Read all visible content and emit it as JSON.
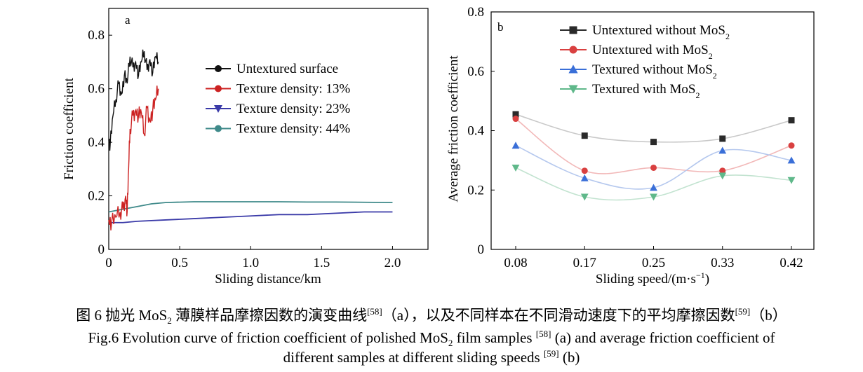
{
  "chart_data": [
    {
      "type": "line",
      "panel_label": "a",
      "xlabel": "Sliding distance/km",
      "ylabel": "Friction coefficient",
      "xlim": [
        0,
        2.25
      ],
      "ylim": [
        0,
        0.9
      ],
      "x_ticks": [
        "0",
        "0.5",
        "1.0",
        "1.5",
        "2.0"
      ],
      "y_ticks": [
        "0",
        "0.2",
        "0.4",
        "0.6",
        "0.8"
      ],
      "x_tick_values": [
        0,
        0.5,
        1.0,
        1.5,
        2.0
      ],
      "y_tick_values": [
        0,
        0.2,
        0.4,
        0.6,
        0.8
      ],
      "series": [
        {
          "name": "Untextured surface",
          "color": "#111111",
          "marker": "circle",
          "x": [
            0,
            0.01,
            0.03,
            0.05,
            0.07,
            0.09,
            0.11,
            0.13,
            0.15,
            0.17,
            0.19,
            0.21,
            0.23,
            0.25,
            0.27,
            0.29,
            0.31,
            0.33,
            0.35
          ],
          "y": [
            0.41,
            0.39,
            0.5,
            0.56,
            0.62,
            0.58,
            0.65,
            0.62,
            0.72,
            0.68,
            0.7,
            0.65,
            0.7,
            0.74,
            0.67,
            0.71,
            0.66,
            0.72,
            0.7
          ]
        },
        {
          "name": "Texture density: 13%",
          "color": "#cc2222",
          "marker": "circle",
          "x": [
            0,
            0.02,
            0.05,
            0.08,
            0.1,
            0.12,
            0.13,
            0.14,
            0.15,
            0.17,
            0.19,
            0.21,
            0.23,
            0.25,
            0.27,
            0.29,
            0.31,
            0.33,
            0.35
          ],
          "y": [
            0.11,
            0.1,
            0.12,
            0.14,
            0.15,
            0.2,
            0.14,
            0.3,
            0.45,
            0.5,
            0.52,
            0.5,
            0.51,
            0.43,
            0.53,
            0.48,
            0.52,
            0.56,
            0.6
          ]
        },
        {
          "name": "Texture density: 23%",
          "color": "#3a3aa8",
          "marker": "triangle-down",
          "x": [
            0,
            0.1,
            0.2,
            0.4,
            0.6,
            0.8,
            1.0,
            1.2,
            1.4,
            1.6,
            1.8,
            2.0
          ],
          "y": [
            0.1,
            0.1,
            0.105,
            0.11,
            0.115,
            0.12,
            0.125,
            0.13,
            0.13,
            0.135,
            0.14,
            0.14
          ]
        },
        {
          "name": "Texture density: 44%",
          "color": "#3f8a8a",
          "marker": "circle",
          "x": [
            0,
            0.1,
            0.2,
            0.3,
            0.4,
            0.6,
            0.8,
            1.0,
            1.2,
            1.4,
            1.6,
            1.8,
            2.0
          ],
          "y": [
            0.14,
            0.15,
            0.16,
            0.17,
            0.175,
            0.178,
            0.178,
            0.178,
            0.178,
            0.177,
            0.177,
            0.176,
            0.175
          ]
        }
      ]
    },
    {
      "type": "line",
      "panel_label": "b",
      "xlabel": "Sliding speed/(m·s",
      "xlabel_sup": "−1",
      "xlabel_tail": ")",
      "ylabel": "Average friction coefficient",
      "categories": [
        "0.08",
        "0.17",
        "0.25",
        "0.33",
        "0.42"
      ],
      "ylim": [
        0,
        0.8
      ],
      "y_ticks": [
        "0",
        "0.2",
        "0.4",
        "0.6",
        "0.8"
      ],
      "y_tick_values": [
        0,
        0.2,
        0.4,
        0.6,
        0.8
      ],
      "series": [
        {
          "name": "Untextured without MoS",
          "name_sub": "2",
          "color": "#2a2a2a",
          "line_color": "#c9c9c9",
          "marker": "square",
          "values": [
            0.455,
            0.383,
            0.362,
            0.373,
            0.435
          ]
        },
        {
          "name": "Untextured with MoS",
          "name_sub": "2",
          "color": "#d94040",
          "line_color": "#f2b8b8",
          "marker": "circle",
          "values": [
            0.44,
            0.265,
            0.275,
            0.265,
            0.35
          ]
        },
        {
          "name": "Textured without MoS",
          "name_sub": "2",
          "color": "#3a6fd8",
          "line_color": "#b5c8ee",
          "marker": "triangle-up",
          "values": [
            0.35,
            0.24,
            0.208,
            0.333,
            0.3
          ]
        },
        {
          "name": "Textured with MoS",
          "name_sub": "2",
          "color": "#5fb88a",
          "line_color": "#c2e3d0",
          "marker": "triangle-down",
          "values": [
            0.275,
            0.177,
            0.177,
            0.248,
            0.233
          ]
        }
      ]
    }
  ],
  "caption": {
    "cn_prefix": "图 6   抛光 MoS",
    "cn_sub": "2",
    "cn_mid": " 薄膜样品摩擦因数的演变曲线",
    "cn_ref1": "[58]",
    "cn_mid2": "（a），以及不同样本在不同滑动速度下的平均摩擦因数",
    "cn_ref2": "[59]",
    "cn_tail": "（b）",
    "en_prefix": "Fig.6 Evolution curve of friction coefficient of polished MoS",
    "en_sub": "2",
    "en_mid": " film samples ",
    "en_ref1": "[58]",
    "en_tail1": " (a) and average friction coefficient of",
    "en_line2": "different samples at different sliding speeds ",
    "en_ref2": "[59]",
    "en_tail2": " (b)"
  }
}
